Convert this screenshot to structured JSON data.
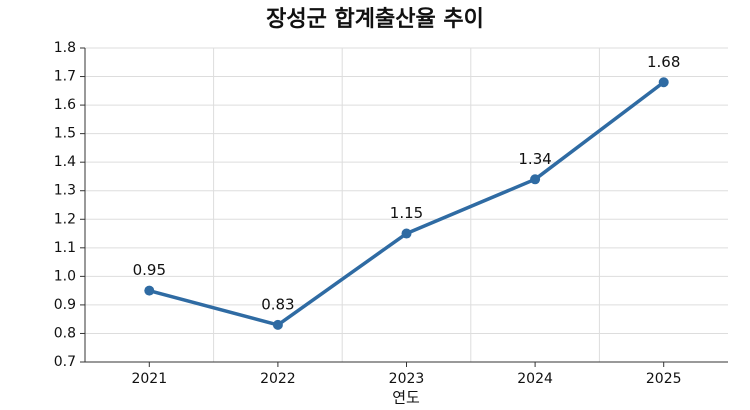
{
  "chart_data": {
    "type": "line",
    "title": "장성군 합계출산율 추이",
    "x_label": "연도",
    "categories": [
      "2021",
      "2022",
      "2023",
      "2024",
      "2025"
    ],
    "series": [
      {
        "name": "합계출산율",
        "color": "#2f6ba3",
        "values": [
          0.95,
          0.83,
          1.15,
          1.34,
          1.68
        ]
      }
    ],
    "ylim": [
      0.7,
      1.8
    ],
    "yticks": [
      0.7,
      0.8,
      0.9,
      {
        "value": 1,
        "label": "1.0"
      },
      1.1,
      1.2,
      1.3,
      1.4,
      1.5,
      1.6,
      1.7,
      1.8
    ],
    "grid": true
  }
}
